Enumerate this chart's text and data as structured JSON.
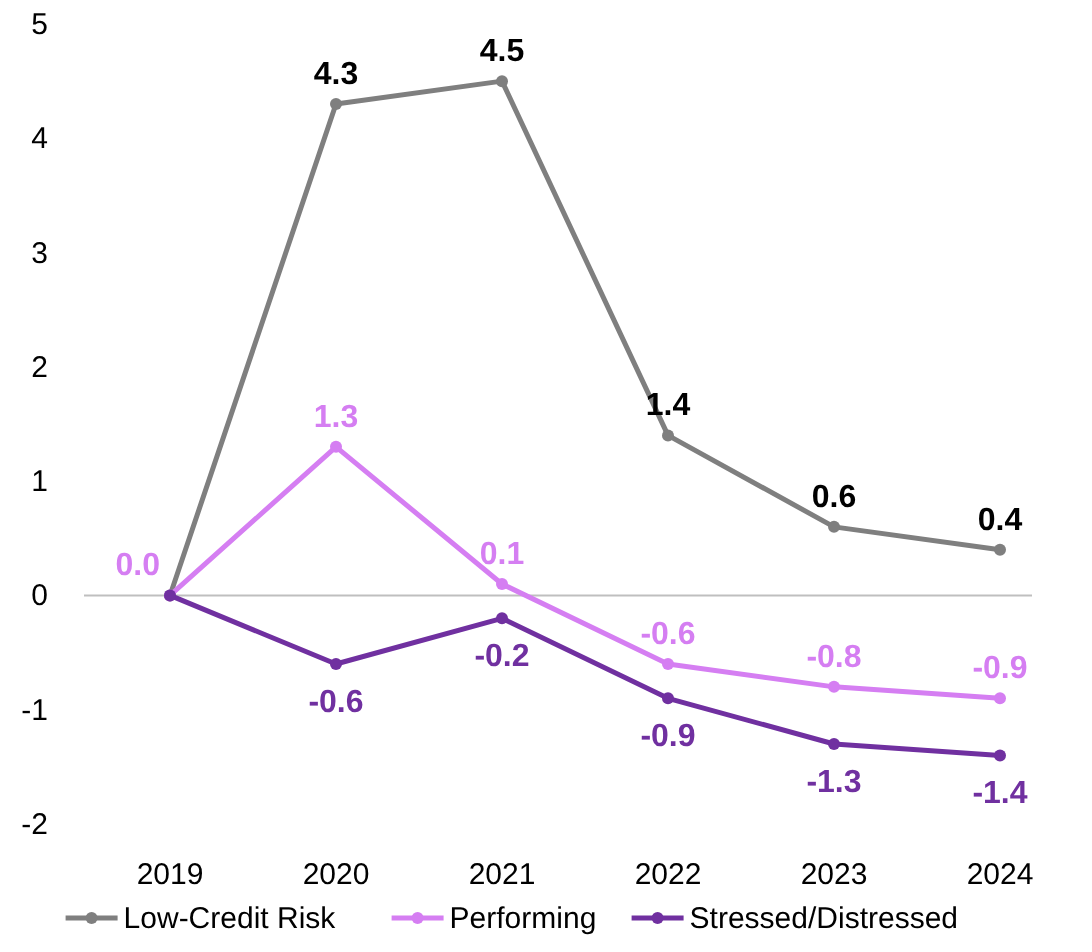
{
  "chart_data": {
    "type": "line",
    "categories": [
      "2019",
      "2020",
      "2021",
      "2022",
      "2023",
      "2024"
    ],
    "series": [
      {
        "name": "Low-Credit Risk",
        "color": "#7f7f7f",
        "values": [
          0,
          4.3,
          4.5,
          1.4,
          0.6,
          0.4
        ],
        "value_labels": [
          null,
          "4.3",
          "4.5",
          "1.4",
          "0.6",
          "0.4"
        ]
      },
      {
        "name": "Performing",
        "color": "#d57ef2",
        "values": [
          0,
          1.3,
          0.1,
          -0.6,
          -0.8,
          -0.9
        ],
        "value_labels": [
          "0.0",
          "1.3",
          "0.1",
          "-0.6",
          "-0.8",
          "-0.9"
        ]
      },
      {
        "name": "Stressed/Distressed",
        "color": "#7030a0",
        "values": [
          0,
          -0.6,
          -0.2,
          -0.9,
          -1.3,
          -1.4
        ],
        "value_labels": [
          null,
          "-0.6",
          "-0.2",
          "-0.9",
          "-1.3",
          "-1.4"
        ]
      }
    ],
    "ylim": [
      -2,
      5
    ],
    "yticks": [
      -2,
      -1,
      0,
      1,
      2,
      3,
      4,
      5
    ],
    "legend": "bottom",
    "marker": "circle",
    "line_style": "solid"
  }
}
